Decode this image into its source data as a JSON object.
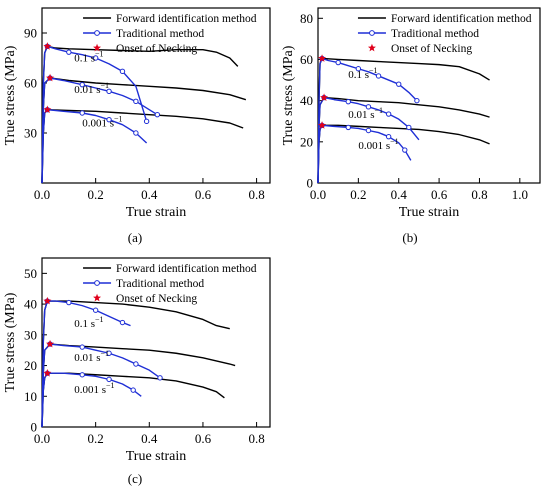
{
  "chart_data": [
    {
      "id": "a",
      "type": "line",
      "caption": "(a)",
      "xlabel": "True strain",
      "ylabel": "True stress (MPa)",
      "xlim": [
        0,
        0.85
      ],
      "ylim": [
        0,
        105
      ],
      "xticks": [
        0.0,
        0.2,
        0.4,
        0.6,
        0.8
      ],
      "xtick_labels": [
        "0.0",
        "0.2",
        "0.4",
        "0.6",
        "0.8"
      ],
      "yticks": [
        30,
        60,
        90
      ],
      "ytick_labels": [
        "30",
        "60",
        "90"
      ],
      "legend": {
        "position": "top-right",
        "entries": [
          {
            "label": "Forward identification method",
            "marker": "line",
            "color": "#000000"
          },
          {
            "label": "Traditional method",
            "marker": "line-circle",
            "color": "#1f2fd6"
          },
          {
            "label": "Onset of Necking",
            "marker": "star",
            "color": "#e0001b"
          }
        ]
      },
      "rate_labels": [
        {
          "base": "0.1 s",
          "exp": "−1",
          "x": 0.12,
          "y": 73
        },
        {
          "base": "0.01 s",
          "exp": "−1",
          "x": 0.12,
          "y": 54
        },
        {
          "base": "0.001 s",
          "exp": "−1",
          "x": 0.15,
          "y": 34
        }
      ],
      "series": [
        {
          "method": "forward",
          "rate_label": "0.1 s−1",
          "x": [
            0,
            0.005,
            0.01,
            0.02,
            0.05,
            0.1,
            0.2,
            0.3,
            0.4,
            0.5,
            0.6,
            0.65,
            0.7,
            0.73
          ],
          "y": [
            0,
            60,
            78,
            82,
            81,
            80.5,
            80,
            79.5,
            79,
            80,
            80,
            78.5,
            75,
            70
          ]
        },
        {
          "method": "forward",
          "rate_label": "0.01 s−1",
          "x": [
            0,
            0.005,
            0.01,
            0.03,
            0.1,
            0.2,
            0.3,
            0.4,
            0.5,
            0.6,
            0.7,
            0.76
          ],
          "y": [
            0,
            45,
            60,
            63,
            61.5,
            60,
            59,
            58,
            57,
            55.5,
            53,
            50
          ]
        },
        {
          "method": "forward",
          "rate_label": "0.001 s−1",
          "x": [
            0,
            0.005,
            0.01,
            0.02,
            0.1,
            0.2,
            0.3,
            0.4,
            0.5,
            0.6,
            0.7,
            0.75
          ],
          "y": [
            0,
            30,
            42,
            44,
            43.5,
            43,
            42,
            41,
            40,
            38.5,
            36,
            33
          ]
        },
        {
          "method": "traditional",
          "rate_label": "0.1 s−1",
          "x": [
            0,
            0.005,
            0.01,
            0.02,
            0.05,
            0.1,
            0.15,
            0.2,
            0.25,
            0.3,
            0.35,
            0.39
          ],
          "y": [
            0,
            60,
            78,
            82,
            80.5,
            78.5,
            77,
            75,
            71.5,
            67,
            58,
            37
          ]
        },
        {
          "method": "traditional",
          "rate_label": "0.01 s−1",
          "x": [
            0,
            0.005,
            0.01,
            0.03,
            0.08,
            0.15,
            0.2,
            0.25,
            0.3,
            0.35,
            0.4,
            0.43
          ],
          "y": [
            0,
            45,
            60,
            63,
            61.5,
            59,
            57,
            55,
            52.5,
            49,
            44,
            41
          ]
        },
        {
          "method": "traditional",
          "rate_label": "0.001 s−1",
          "x": [
            0,
            0.005,
            0.01,
            0.02,
            0.08,
            0.15,
            0.2,
            0.25,
            0.3,
            0.35,
            0.39
          ],
          "y": [
            0,
            30,
            42,
            44,
            43,
            42,
            40.5,
            38,
            35,
            30,
            24
          ]
        }
      ],
      "necking_points": [
        {
          "x": 0.02,
          "y": 82
        },
        {
          "x": 0.03,
          "y": 63
        },
        {
          "x": 0.02,
          "y": 44
        }
      ]
    },
    {
      "id": "b",
      "type": "line",
      "caption": "(b)",
      "xlabel": "True strain",
      "ylabel": "True stress (MPa)",
      "xlim": [
        0,
        1.1
      ],
      "ylim": [
        0,
        85
      ],
      "xticks": [
        0.0,
        0.2,
        0.4,
        0.6,
        0.8,
        1.0
      ],
      "xtick_labels": [
        "0.0",
        "0.2",
        "0.4",
        "0.6",
        "0.8",
        "1.0"
      ],
      "yticks": [
        0,
        20,
        40,
        60,
        80
      ],
      "ytick_labels": [
        "0",
        "20",
        "40",
        "60",
        "80"
      ],
      "legend": {
        "position": "top-right",
        "entries": [
          {
            "label": "Forward identification method",
            "marker": "line",
            "color": "#000000"
          },
          {
            "label": "Traditional method",
            "marker": "line-circle",
            "color": "#1f2fd6"
          },
          {
            "label": "Onset of Necking",
            "marker": "star",
            "color": "#e0001b"
          }
        ]
      },
      "rate_labels": [
        {
          "base": "0.1 s",
          "exp": "−1",
          "x": 0.15,
          "y": 51
        },
        {
          "base": "0.01 s",
          "exp": "−1",
          "x": 0.15,
          "y": 31.5
        },
        {
          "base": "0.001 s",
          "exp": "−1",
          "x": 0.2,
          "y": 16.5
        }
      ],
      "series": [
        {
          "method": "forward",
          "rate_label": "0.1 s−1",
          "x": [
            0,
            0.005,
            0.01,
            0.02,
            0.1,
            0.2,
            0.3,
            0.4,
            0.5,
            0.6,
            0.7,
            0.8,
            0.85
          ],
          "y": [
            0,
            40,
            58,
            60.5,
            60,
            59.5,
            59,
            58.5,
            58,
            57.5,
            56.5,
            53,
            50
          ]
        },
        {
          "method": "forward",
          "rate_label": "0.01 s−1",
          "x": [
            0,
            0.005,
            0.01,
            0.03,
            0.1,
            0.2,
            0.3,
            0.4,
            0.5,
            0.6,
            0.7,
            0.8,
            0.85
          ],
          "y": [
            0,
            28,
            38,
            41.5,
            41,
            40,
            39.5,
            39,
            38,
            37,
            35.5,
            33.5,
            32
          ]
        },
        {
          "method": "forward",
          "rate_label": "0.001 s−1",
          "x": [
            0,
            0.005,
            0.01,
            0.02,
            0.1,
            0.2,
            0.3,
            0.4,
            0.5,
            0.6,
            0.7,
            0.8,
            0.85
          ],
          "y": [
            0,
            20,
            26,
            28,
            28,
            27.5,
            27,
            26.5,
            26,
            25,
            23.5,
            21,
            19
          ]
        },
        {
          "method": "traditional",
          "rate_label": "0.1 s−1",
          "x": [
            0,
            0.005,
            0.01,
            0.02,
            0.05,
            0.1,
            0.15,
            0.2,
            0.25,
            0.3,
            0.35,
            0.4,
            0.45,
            0.49
          ],
          "y": [
            0,
            40,
            58,
            60.5,
            59.5,
            58.5,
            57,
            55.5,
            54,
            52,
            50,
            48,
            44,
            40
          ]
        },
        {
          "method": "traditional",
          "rate_label": "0.01 s−1",
          "x": [
            0,
            0.005,
            0.01,
            0.03,
            0.08,
            0.15,
            0.2,
            0.25,
            0.3,
            0.35,
            0.4,
            0.45,
            0.5
          ],
          "y": [
            0,
            28,
            38,
            41.5,
            40.5,
            39.5,
            38.5,
            37,
            35.5,
            33.5,
            31,
            27,
            21
          ]
        },
        {
          "method": "traditional",
          "rate_label": "0.001 s−1",
          "x": [
            0,
            0.005,
            0.01,
            0.02,
            0.08,
            0.15,
            0.2,
            0.25,
            0.3,
            0.35,
            0.4,
            0.43,
            0.46
          ],
          "y": [
            0,
            20,
            26,
            28,
            27.5,
            27,
            26.5,
            25.5,
            24.5,
            22.5,
            19.5,
            16,
            11
          ]
        }
      ],
      "necking_points": [
        {
          "x": 0.02,
          "y": 60.5
        },
        {
          "x": 0.03,
          "y": 41.5
        },
        {
          "x": 0.02,
          "y": 28
        }
      ]
    },
    {
      "id": "c",
      "type": "line",
      "caption": "(c)",
      "xlabel": "True strain",
      "ylabel": "True stress (MPa)",
      "xlim": [
        0,
        0.85
      ],
      "ylim": [
        0,
        55
      ],
      "xticks": [
        0.0,
        0.2,
        0.4,
        0.6,
        0.8
      ],
      "xtick_labels": [
        "0.0",
        "0.2",
        "0.4",
        "0.6",
        "0.8"
      ],
      "yticks": [
        0,
        10,
        20,
        30,
        40,
        50
      ],
      "ytick_labels": [
        "0",
        "10",
        "20",
        "30",
        "40",
        "50"
      ],
      "legend": {
        "position": "top-right",
        "entries": [
          {
            "label": "Forward identification method",
            "marker": "line",
            "color": "#000000"
          },
          {
            "label": "Traditional method",
            "marker": "line-circle",
            "color": "#1f2fd6"
          },
          {
            "label": "Onset of Necking",
            "marker": "star",
            "color": "#e0001b"
          }
        ]
      },
      "rate_labels": [
        {
          "base": "0.1 s",
          "exp": "−1",
          "x": 0.12,
          "y": 32.5
        },
        {
          "base": "0.01 s",
          "exp": "−1",
          "x": 0.12,
          "y": 21.5
        },
        {
          "base": "0.001 s",
          "exp": "−1",
          "x": 0.12,
          "y": 11
        }
      ],
      "series": [
        {
          "method": "forward",
          "rate_label": "0.1 s−1",
          "x": [
            0,
            0.005,
            0.01,
            0.02,
            0.1,
            0.2,
            0.3,
            0.4,
            0.5,
            0.6,
            0.65,
            0.7
          ],
          "y": [
            0,
            28,
            38,
            41,
            41,
            40.5,
            40,
            39,
            37.5,
            35,
            33,
            32
          ]
        },
        {
          "method": "forward",
          "rate_label": "0.01 s−1",
          "x": [
            0,
            0.005,
            0.01,
            0.03,
            0.1,
            0.2,
            0.3,
            0.4,
            0.5,
            0.6,
            0.7,
            0.72
          ],
          "y": [
            0,
            18,
            25,
            27,
            26.5,
            26,
            25.5,
            25,
            24,
            22.5,
            20.5,
            20
          ]
        },
        {
          "method": "forward",
          "rate_label": "0.001 s−1",
          "x": [
            0,
            0.005,
            0.01,
            0.02,
            0.1,
            0.2,
            0.3,
            0.4,
            0.5,
            0.6,
            0.65,
            0.68
          ],
          "y": [
            0,
            12,
            16,
            17.5,
            17.5,
            17,
            16.5,
            16,
            15,
            13,
            11.5,
            9.5
          ]
        },
        {
          "method": "traditional",
          "rate_label": "0.1 s−1",
          "x": [
            0,
            0.005,
            0.01,
            0.02,
            0.05,
            0.1,
            0.15,
            0.2,
            0.25,
            0.3,
            0.33
          ],
          "y": [
            0,
            28,
            38,
            41,
            41,
            40.5,
            39.5,
            38,
            36,
            34,
            33
          ]
        },
        {
          "method": "traditional",
          "rate_label": "0.01 s−1",
          "x": [
            0,
            0.005,
            0.01,
            0.03,
            0.08,
            0.15,
            0.2,
            0.25,
            0.3,
            0.35,
            0.4,
            0.44
          ],
          "y": [
            0,
            18,
            25,
            27,
            26.5,
            26,
            25,
            24,
            22.5,
            20.5,
            18.5,
            16
          ]
        },
        {
          "method": "traditional",
          "rate_label": "0.001 s−1",
          "x": [
            0,
            0.005,
            0.01,
            0.02,
            0.08,
            0.15,
            0.2,
            0.25,
            0.3,
            0.34,
            0.37
          ],
          "y": [
            0,
            12,
            16,
            17.5,
            17.5,
            17,
            16.5,
            15.5,
            14,
            12,
            10
          ]
        }
      ],
      "necking_points": [
        {
          "x": 0.02,
          "y": 41
        },
        {
          "x": 0.03,
          "y": 27
        },
        {
          "x": 0.02,
          "y": 17.5
        }
      ]
    }
  ]
}
